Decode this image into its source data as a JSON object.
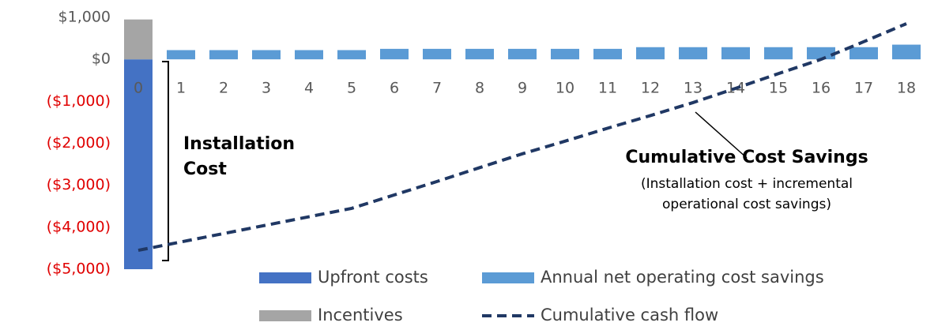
{
  "chart_data": {
    "type": "bar",
    "categories": [
      "0",
      "1",
      "2",
      "3",
      "4",
      "5",
      "6",
      "7",
      "8",
      "9",
      "10",
      "11",
      "12",
      "13",
      "14",
      "15",
      "16",
      "17",
      "18"
    ],
    "series": [
      {
        "name": "Upfront costs",
        "type": "bar",
        "color": "#4472c4",
        "values": [
          -5000,
          null,
          null,
          null,
          null,
          null,
          null,
          null,
          null,
          null,
          null,
          null,
          null,
          null,
          null,
          null,
          null,
          null,
          null
        ]
      },
      {
        "name": "Annual net operating cost savings",
        "type": "bar",
        "color": "#5b9bd5",
        "values": [
          null,
          220,
          220,
          220,
          220,
          220,
          250,
          250,
          250,
          250,
          250,
          250,
          290,
          290,
          290,
          290,
          290,
          290,
          350
        ]
      },
      {
        "name": "Incentives",
        "type": "bar",
        "color": "#a5a5a5",
        "values": [
          950,
          null,
          null,
          null,
          null,
          null,
          null,
          null,
          null,
          null,
          null,
          null,
          null,
          null,
          null,
          null,
          null,
          null,
          null
        ]
      },
      {
        "name": "Cumulative cash flow",
        "type": "line",
        "color": "#203864",
        "values": [
          -4550,
          -4350,
          -4150,
          -3950,
          -3750,
          -3550,
          -3230,
          -2910,
          -2580,
          -2250,
          -1950,
          -1640,
          -1340,
          -1030,
          -690,
          -340,
          0,
          420,
          850
        ]
      }
    ],
    "ylim": [
      -5000,
      1000
    ],
    "yticks": [
      {
        "value": 1000,
        "label": "$1,000"
      },
      {
        "value": 0,
        "label": "$0"
      },
      {
        "value": -1000,
        "label": "($1,000)"
      },
      {
        "value": -2000,
        "label": "($2,000)"
      },
      {
        "value": -3000,
        "label": "($3,000)"
      },
      {
        "value": -4000,
        "label": "($4,000)"
      },
      {
        "value": -5000,
        "label": "($5,000)"
      }
    ],
    "negative_tick_color": "#e00000",
    "annotations": [
      "Installation",
      "Cost",
      "Cumulative Cost Savings",
      "(Installation cost + incremental",
      "operational cost savings)"
    ]
  }
}
